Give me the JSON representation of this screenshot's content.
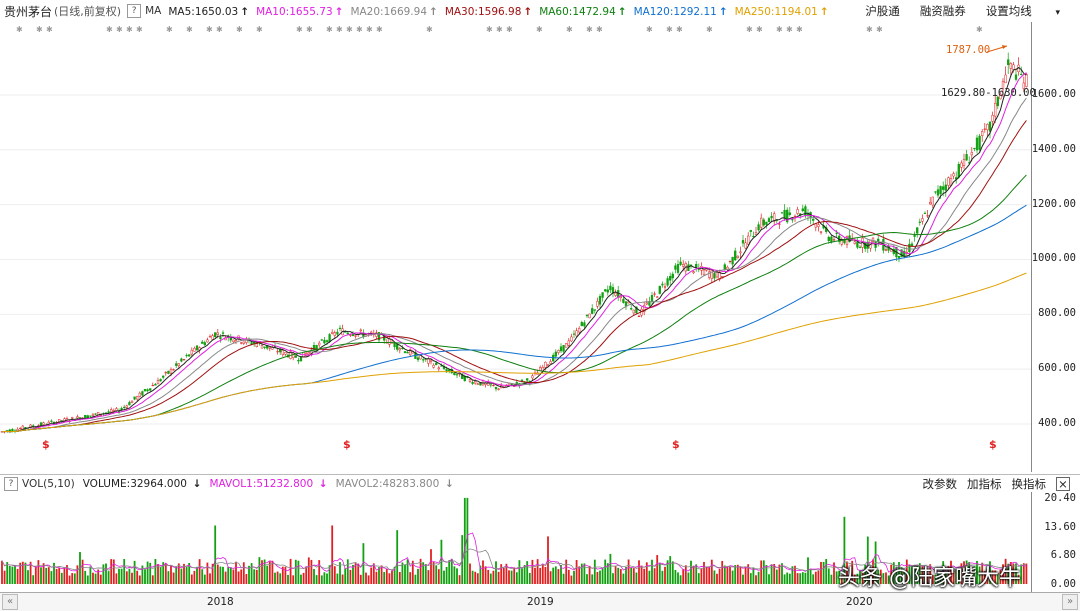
{
  "header": {
    "stock_name": "贵州茅台",
    "mode": "(日线,前复权)",
    "help": "?",
    "ma_prefix": "MA",
    "ma_items": [
      {
        "label": "MA5:1650.03",
        "color": "#222222",
        "arrow": "↑"
      },
      {
        "label": "MA10:1655.73",
        "color": "#e020e0",
        "arrow": "↑"
      },
      {
        "label": "MA20:1669.94",
        "color": "#888888",
        "arrow": "↑"
      },
      {
        "label": "MA30:1596.98",
        "color": "#a01010",
        "arrow": "↑"
      },
      {
        "label": "MA60:1472.94",
        "color": "#108010",
        "arrow": "↑"
      },
      {
        "label": "MA120:1292.11",
        "color": "#1070d0",
        "arrow": "↑"
      },
      {
        "label": "MA250:1194.01",
        "color": "#e0a000",
        "arrow": "↑"
      }
    ],
    "links": [
      "沪股通",
      "融资融券",
      "设置均线"
    ],
    "dropdown_icon": "▾"
  },
  "price_axis": {
    "ticks": [
      {
        "label": "1600.00",
        "value": 1600
      },
      {
        "label": "1400.00",
        "value": 1400
      },
      {
        "label": "1200.00",
        "value": 1200
      },
      {
        "label": "1000.00",
        "value": 1000
      },
      {
        "label": "800.00",
        "value": 800
      },
      {
        "label": "600.00",
        "value": 600
      },
      {
        "label": "400.00",
        "value": 400
      }
    ]
  },
  "annotations": {
    "high": "1787.00",
    "current": "1629.80-1630.00"
  },
  "volume_header": {
    "help": "?",
    "indicator": "VOL(5,10)",
    "items": [
      {
        "label": "VOLUME:32964.000",
        "color": "#222222",
        "arrow": "↓"
      },
      {
        "label": "MAVOL1:51232.800",
        "color": "#e020e0",
        "arrow": "↓"
      },
      {
        "label": "MAVOL2:48283.800",
        "color": "#888888",
        "arrow": "↓"
      }
    ],
    "buttons": [
      "改参数",
      "加指标",
      "换指标"
    ],
    "close": "×"
  },
  "volume_axis": {
    "ticks": [
      {
        "label": "20.40",
        "value": 20.4
      },
      {
        "label": "13.60",
        "value": 13.6
      },
      {
        "label": "6.80",
        "value": 6.8
      },
      {
        "label": "0.00",
        "value": 0
      }
    ]
  },
  "time_axis": {
    "labels": [
      {
        "label": "2018"
      },
      {
        "label": "2019"
      },
      {
        "label": "2020"
      }
    ],
    "left_btn": "«",
    "right_btn": "»"
  },
  "dividend_marks": [
    "$",
    "$",
    "$",
    "$"
  ],
  "watermark": "头条 @陆家嘴大牛",
  "colors": {
    "up": "#e02020",
    "down": "#10a010",
    "ma5": "#222222",
    "ma10": "#e020e0",
    "ma20": "#888888",
    "ma30": "#a01010",
    "ma60": "#108010",
    "ma120": "#1070d0",
    "ma250": "#e0a000"
  }
}
